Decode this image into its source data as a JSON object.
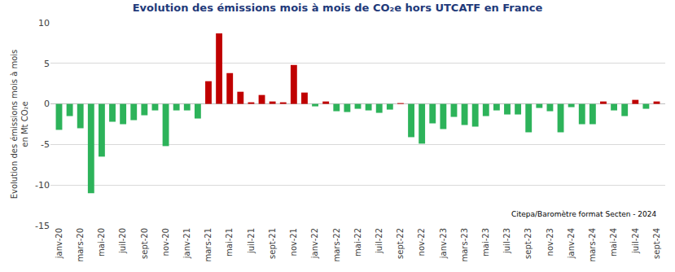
{
  "chart_data": {
    "type": "bar",
    "title": "Evolution des émissions mois à mois de CO₂e hors UTCATF en France",
    "ylabel": [
      "Evolution des émissions mois à mois",
      "en Mt CO₂e"
    ],
    "annotations": [
      "Citepa/Baromètre format Secten - 2024"
    ],
    "categories": [
      "janv-20",
      null,
      "mars-20",
      null,
      "mai-20",
      null,
      "juil-20",
      null,
      "sept-20",
      null,
      "nov-20",
      null,
      "janv-21",
      null,
      "mars-21",
      null,
      "mai-21",
      null,
      "juil-21",
      null,
      "sept-21",
      null,
      "nov-21",
      null,
      "janv-22",
      null,
      "mars-22",
      null,
      "mai-22",
      null,
      "juil-22",
      null,
      "sept-22",
      null,
      "nov-22",
      null,
      "janv-23",
      null,
      "mars-23",
      null,
      "mai-23",
      null,
      "juil-23",
      null,
      "sept-23",
      null,
      "nov-23",
      null,
      "janv-24",
      null,
      "mars-24",
      null,
      "mai-24",
      null,
      "juil-24",
      null,
      "sept-24"
    ],
    "values": [
      -3.2,
      -1.5,
      -3.0,
      -11.0,
      -6.5,
      -2.2,
      -2.5,
      -2.0,
      -1.4,
      -0.8,
      -5.2,
      -0.8,
      -0.8,
      -1.8,
      2.8,
      8.7,
      3.8,
      1.5,
      0.2,
      1.1,
      0.3,
      0.2,
      4.8,
      1.4,
      -0.3,
      0.3,
      -0.9,
      -1.0,
      -0.6,
      -0.8,
      -1.1,
      -0.7,
      0.1,
      -4.1,
      -4.9,
      -2.4,
      -3.1,
      -1.6,
      -2.6,
      -2.8,
      -1.5,
      -0.8,
      -1.3,
      -1.3,
      -3.5,
      -0.5,
      -0.9,
      -3.5,
      -0.4,
      -2.5,
      -2.5,
      0.3,
      -0.8,
      -1.5,
      0.5,
      -0.6,
      0.3
    ],
    "colors": [
      "#2db35a",
      "#2db35a",
      "#2db35a",
      "#2db35a",
      "#2db35a",
      "#2db35a",
      "#2db35a",
      "#2db35a",
      "#2db35a",
      "#2db35a",
      "#2db35a",
      "#2db35a",
      "#2db35a",
      "#2db35a",
      "#c00000",
      "#c00000",
      "#c00000",
      "#c00000",
      "#c00000",
      "#c00000",
      "#c00000",
      "#c00000",
      "#c00000",
      "#c00000",
      "#2db35a",
      "#c00000",
      "#2db35a",
      "#2db35a",
      "#2db35a",
      "#2db35a",
      "#2db35a",
      "#2db35a",
      "#c00000",
      "#2db35a",
      "#2db35a",
      "#2db35a",
      "#2db35a",
      "#2db35a",
      "#2db35a",
      "#2db35a",
      "#2db35a",
      "#2db35a",
      "#2db35a",
      "#2db35a",
      "#2db35a",
      "#2db35a",
      "#2db35a",
      "#2db35a",
      "#2db35a",
      "#2db35a",
      "#2db35a",
      "#c00000",
      "#2db35a",
      "#2db35a",
      "#c00000",
      "#2db35a",
      "#c00000"
    ],
    "ylim": [
      -15,
      10
    ],
    "yticks": [
      -15,
      -10,
      -5,
      0,
      5,
      10
    ],
    "grid": true
  }
}
